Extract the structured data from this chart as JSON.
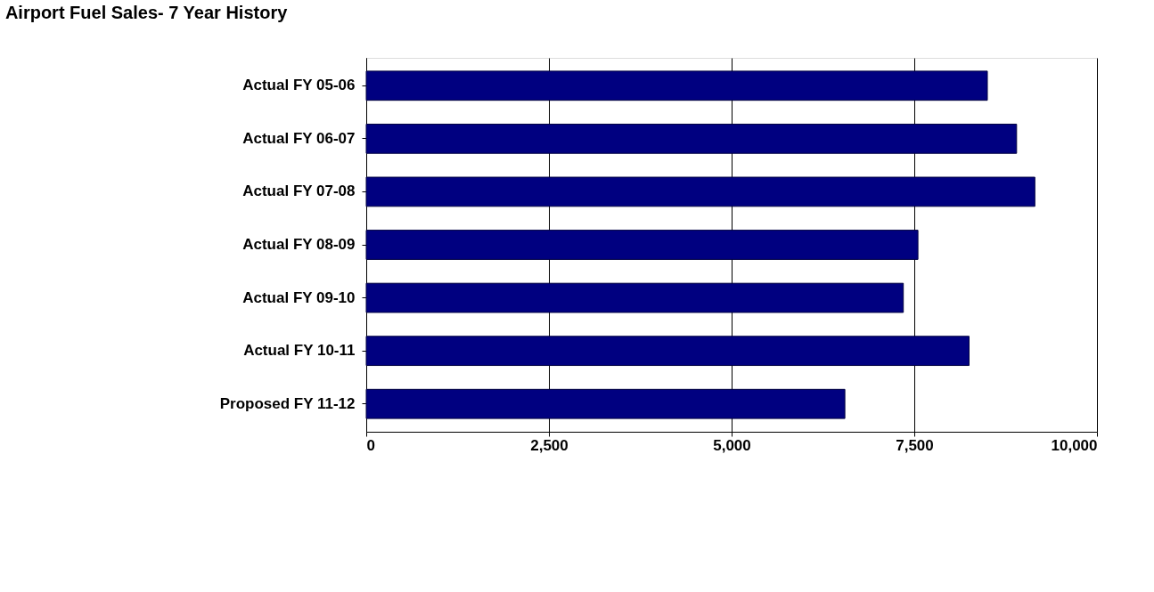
{
  "chart_data": {
    "type": "bar",
    "orientation": "horizontal",
    "title": "Airport Fuel Sales- 7 Year History",
    "categories": [
      "Actual FY 05-06",
      "Actual FY 06-07",
      "Actual FY 07-08",
      "Actual FY 08-09",
      "Actual FY 09-10",
      "Actual FY 10-11",
      "Proposed FY 11-12"
    ],
    "values": [
      8500,
      8900,
      9150,
      7550,
      7350,
      8250,
      6550
    ],
    "color": "#000080",
    "xlim": [
      0,
      10000
    ],
    "xticks": [
      0,
      {
        "value": 2500,
        "label": "2,500"
      },
      {
        "value": 5000,
        "label": "5,000"
      },
      {
        "value": 7500,
        "label": "7,500"
      },
      {
        "value": 10000,
        "label": "10,000"
      }
    ],
    "grid": "x"
  }
}
